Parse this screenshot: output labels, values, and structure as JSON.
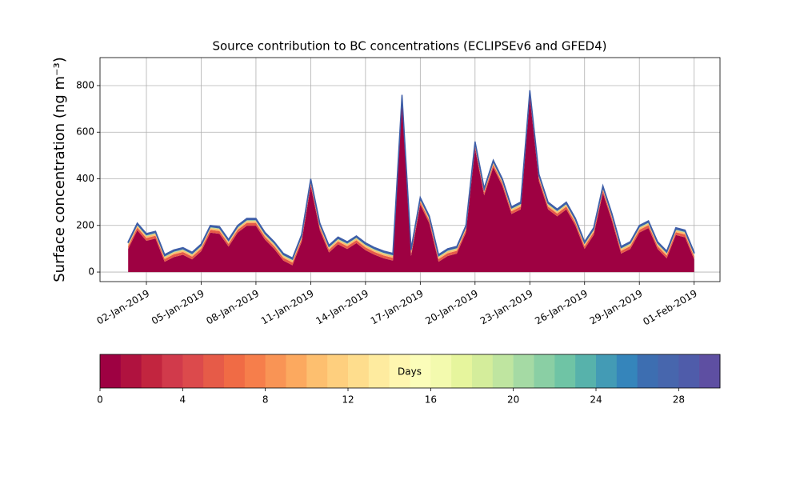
{
  "chart_data": {
    "type": "stacked_area",
    "title": "Source contribution to BC concentrations (ECLIPSEv6 and GFED4)",
    "ylabel": "Surface concentration (ng m⁻³)",
    "x": [
      "2019-01-01T00:00",
      "2019-01-01T12:00",
      "2019-01-02T00:00",
      "2019-01-02T12:00",
      "2019-01-03T00:00",
      "2019-01-03T12:00",
      "2019-01-04T00:00",
      "2019-01-04T12:00",
      "2019-01-05T00:00",
      "2019-01-05T12:00",
      "2019-01-06T00:00",
      "2019-01-06T12:00",
      "2019-01-07T00:00",
      "2019-01-07T12:00",
      "2019-01-08T00:00",
      "2019-01-08T12:00",
      "2019-01-09T00:00",
      "2019-01-09T12:00",
      "2019-01-10T00:00",
      "2019-01-10T12:00",
      "2019-01-11T00:00",
      "2019-01-11T12:00",
      "2019-01-12T00:00",
      "2019-01-12T12:00",
      "2019-01-13T00:00",
      "2019-01-13T12:00",
      "2019-01-14T00:00",
      "2019-01-14T12:00",
      "2019-01-15T00:00",
      "2019-01-15T12:00",
      "2019-01-16T00:00",
      "2019-01-16T12:00",
      "2019-01-17T00:00",
      "2019-01-17T12:00",
      "2019-01-18T00:00",
      "2019-01-18T12:00",
      "2019-01-19T00:00",
      "2019-01-19T12:00",
      "2019-01-20T00:00",
      "2019-01-20T12:00",
      "2019-01-21T00:00",
      "2019-01-21T12:00",
      "2019-01-22T00:00",
      "2019-01-22T12:00",
      "2019-01-23T00:00",
      "2019-01-23T12:00",
      "2019-01-24T00:00",
      "2019-01-24T12:00",
      "2019-01-25T00:00",
      "2019-01-25T12:00",
      "2019-01-26T00:00",
      "2019-01-26T12:00",
      "2019-01-27T00:00",
      "2019-01-27T12:00",
      "2019-01-28T00:00",
      "2019-01-28T12:00",
      "2019-01-29T00:00",
      "2019-01-29T12:00",
      "2019-01-30T00:00",
      "2019-01-30T12:00",
      "2019-01-31T00:00",
      "2019-01-31T12:00",
      "2019-02-01T00:00"
    ],
    "series": [
      {
        "color": "#9e0142",
        "values": [
          99,
          179,
          134,
          144,
          44,
          64,
          74,
          54,
          89,
          169,
          164,
          109,
          169,
          199,
          199,
          139,
          99,
          49,
          29,
          129,
          369,
          179,
          84,
          119,
          99,
          124,
          94,
          74,
          59,
          49,
          729,
          69,
          289,
          209,
          44,
          69,
          79,
          169,
          529,
          329,
          449,
          369,
          249,
          269,
          749,
          389,
          269,
          239,
          269,
          199,
          99,
          159,
          339,
          219,
          79,
          99,
          169,
          189,
          99,
          59,
          159,
          149,
          54
        ]
      },
      {
        "color": "#e65b48",
        "values": [
          12,
          12,
          12,
          12,
          12,
          12,
          12,
          12,
          12,
          12,
          12,
          12,
          12,
          12,
          12,
          12,
          12,
          12,
          12,
          12,
          12,
          12,
          12,
          12,
          12,
          12,
          12,
          12,
          12,
          12,
          12,
          12,
          12,
          12,
          12,
          12,
          12,
          12,
          12,
          12,
          12,
          12,
          12,
          12,
          12,
          12,
          12,
          12,
          12,
          12,
          12,
          12,
          12,
          12,
          12,
          12,
          12,
          12,
          12,
          12,
          12,
          12,
          12
        ]
      },
      {
        "color": "#fdbf6f",
        "values": [
          8,
          8,
          8,
          8,
          8,
          8,
          8,
          8,
          8,
          8,
          8,
          8,
          8,
          8,
          8,
          8,
          8,
          8,
          8,
          8,
          8,
          8,
          8,
          8,
          8,
          8,
          8,
          8,
          8,
          8,
          8,
          8,
          8,
          8,
          8,
          8,
          8,
          8,
          8,
          8,
          8,
          8,
          8,
          8,
          8,
          8,
          8,
          8,
          8,
          8,
          8,
          8,
          8,
          8,
          8,
          8,
          8,
          8,
          8,
          8,
          8,
          8,
          8
        ]
      },
      {
        "color": "#abdda4",
        "values": [
          6,
          6,
          6,
          6,
          6,
          6,
          6,
          6,
          6,
          6,
          6,
          6,
          6,
          6,
          6,
          6,
          6,
          6,
          6,
          6,
          6,
          6,
          6,
          6,
          6,
          6,
          6,
          6,
          6,
          6,
          6,
          6,
          6,
          6,
          6,
          6,
          6,
          6,
          6,
          6,
          6,
          6,
          6,
          6,
          6,
          6,
          6,
          6,
          6,
          6,
          6,
          6,
          6,
          6,
          6,
          6,
          6,
          6,
          6,
          6,
          6,
          6,
          6
        ]
      },
      {
        "color": "#3e5ea8",
        "values": [
          5,
          5,
          5,
          5,
          5,
          5,
          5,
          5,
          5,
          5,
          5,
          5,
          5,
          5,
          5,
          5,
          5,
          5,
          5,
          5,
          5,
          5,
          5,
          5,
          5,
          5,
          5,
          5,
          5,
          5,
          5,
          5,
          5,
          5,
          5,
          5,
          5,
          5,
          5,
          5,
          5,
          5,
          5,
          5,
          5,
          5,
          5,
          5,
          5,
          5,
          5,
          5,
          5,
          5,
          5,
          5,
          5,
          5,
          5,
          5,
          5,
          5,
          5
        ]
      }
    ],
    "xlim": [
      "2018-12-30T11:00",
      "2019-02-02T10:00"
    ],
    "xticks": [
      {
        "value": "2019-01-02T00:00",
        "label": "02-Jan-2019"
      },
      {
        "value": "2019-01-05T00:00",
        "label": "05-Jan-2019"
      },
      {
        "value": "2019-01-08T00:00",
        "label": "08-Jan-2019"
      },
      {
        "value": "2019-01-11T00:00",
        "label": "11-Jan-2019"
      },
      {
        "value": "2019-01-14T00:00",
        "label": "14-Jan-2019"
      },
      {
        "value": "2019-01-17T00:00",
        "label": "17-Jan-2019"
      },
      {
        "value": "2019-01-20T00:00",
        "label": "20-Jan-2019"
      },
      {
        "value": "2019-01-23T00:00",
        "label": "23-Jan-2019"
      },
      {
        "value": "2019-01-26T00:00",
        "label": "26-Jan-2019"
      },
      {
        "value": "2019-01-29T00:00",
        "label": "29-Jan-2019"
      },
      {
        "value": "2019-02-01T00:00",
        "label": "01-Feb-2019"
      }
    ],
    "ylim": [
      -41,
      920
    ],
    "yticks": [
      0,
      200,
      400,
      600,
      800
    ],
    "grid": true,
    "colorbar": {
      "label": "Days",
      "lim": [
        0,
        30
      ],
      "ticks": [
        0,
        4,
        8,
        12,
        16,
        20,
        24,
        28
      ],
      "colors": [
        "#9e0142",
        "#b0123f",
        "#c2253f",
        "#d13a4b",
        "#dc4a4c",
        "#e65b48",
        "#f06b45",
        "#f67e4b",
        "#f99455",
        "#fca95f",
        "#fdbf6f",
        "#fecf7e",
        "#fedd8d",
        "#feeb9f",
        "#fff6b0",
        "#fbfdb9",
        "#f3faae",
        "#e6f59d",
        "#d4ed9b",
        "#bfe5a0",
        "#a5daa4",
        "#8acfa4",
        "#6fc4a5",
        "#57b2ab",
        "#439bb5",
        "#3585bb",
        "#3d6eb1",
        "#4766ad",
        "#4f5caa",
        "#5e4fa2"
      ]
    }
  }
}
